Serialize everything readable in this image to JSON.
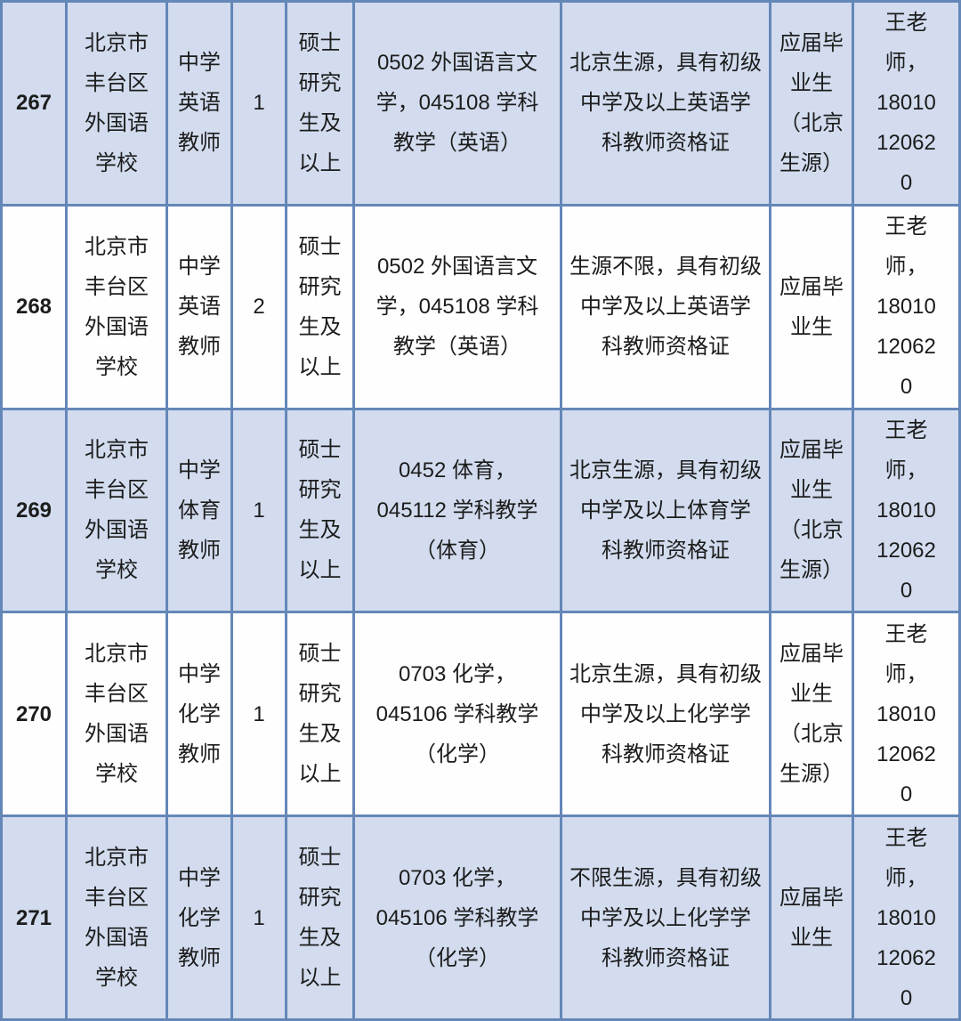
{
  "colors": {
    "border": "#6487b8",
    "rowAlt": "#d2dcee",
    "rowWhite": "#fefeff",
    "text": "#1c1c1c"
  },
  "table": {
    "rows": [
      {
        "serial": "267",
        "school": "北京市\n丰台区\n外国语\n学校",
        "position": "中学\n英语\n教师",
        "count": "1",
        "education": "硕士\n研究\n生及\n以上",
        "major": "0502 外国语言文\n学，045108 学科\n教学（英语）",
        "requirements": "北京生源，具有初级\n中学及以上英语学\n科教师资格证",
        "graduate_type": "应届毕\n业生\n（北京\n生源）",
        "contact": "王老\n师，\n18010\n12062\n0"
      },
      {
        "serial": "268",
        "school": "北京市\n丰台区\n外国语\n学校",
        "position": "中学\n英语\n教师",
        "count": "2",
        "education": "硕士\n研究\n生及\n以上",
        "major": "0502 外国语言文\n学，045108 学科\n教学（英语）",
        "requirements": "生源不限，具有初级\n中学及以上英语学\n科教师资格证",
        "graduate_type": "应届毕\n业生",
        "contact": "王老\n师，\n18010\n12062\n0"
      },
      {
        "serial": "269",
        "school": "北京市\n丰台区\n外国语\n学校",
        "position": "中学\n体育\n教师",
        "count": "1",
        "education": "硕士\n研究\n生及\n以上",
        "major": "0452 体育，\n045112 学科教学\n（体育）",
        "requirements": "北京生源，具有初级\n中学及以上体育学\n科教师资格证",
        "graduate_type": "应届毕\n业生\n（北京\n生源）",
        "contact": "王老\n师，\n18010\n12062\n0"
      },
      {
        "serial": "270",
        "school": "北京市\n丰台区\n外国语\n学校",
        "position": "中学\n化学\n教师",
        "count": "1",
        "education": "硕士\n研究\n生及\n以上",
        "major": "0703 化学，\n045106 学科教学\n（化学）",
        "requirements": "北京生源，具有初级\n中学及以上化学学\n科教师资格证",
        "graduate_type": "应届毕\n业生\n（北京\n生源）",
        "contact": "王老\n师，\n18010\n12062\n0"
      },
      {
        "serial": "271",
        "school": "北京市\n丰台区\n外国语\n学校",
        "position": "中学\n化学\n教师",
        "count": "1",
        "education": "硕士\n研究\n生及\n以上",
        "major": "0703 化学，\n045106 学科教学\n（化学）",
        "requirements": "不限生源，具有初级\n中学及以上化学学\n科教师资格证",
        "graduate_type": "应届毕\n业生",
        "contact": "王老\n师，\n18010\n12062\n0"
      }
    ]
  }
}
